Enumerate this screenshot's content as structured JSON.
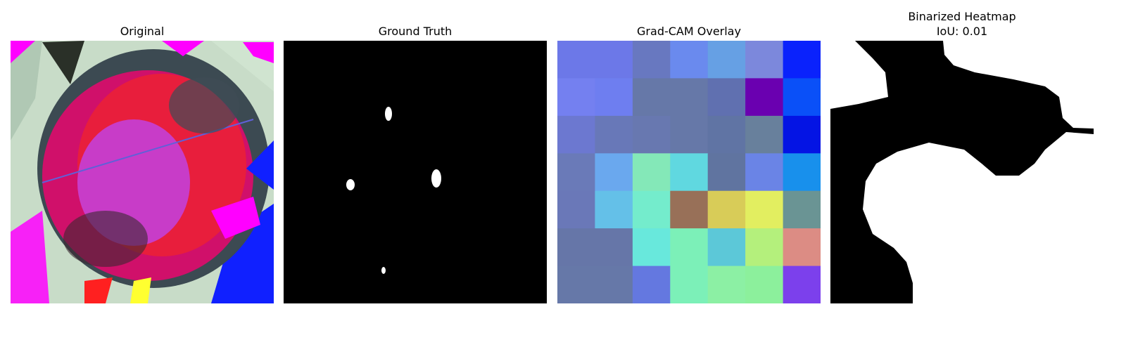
{
  "panels": [
    {
      "title_lines": [
        "Original"
      ]
    },
    {
      "title_lines": [
        "Ground Truth"
      ]
    },
    {
      "title_lines": [
        "Grad-CAM Overlay"
      ]
    },
    {
      "title_lines": [
        "Binarized Heatmap",
        "IoU: 0.01"
      ]
    }
  ]
}
